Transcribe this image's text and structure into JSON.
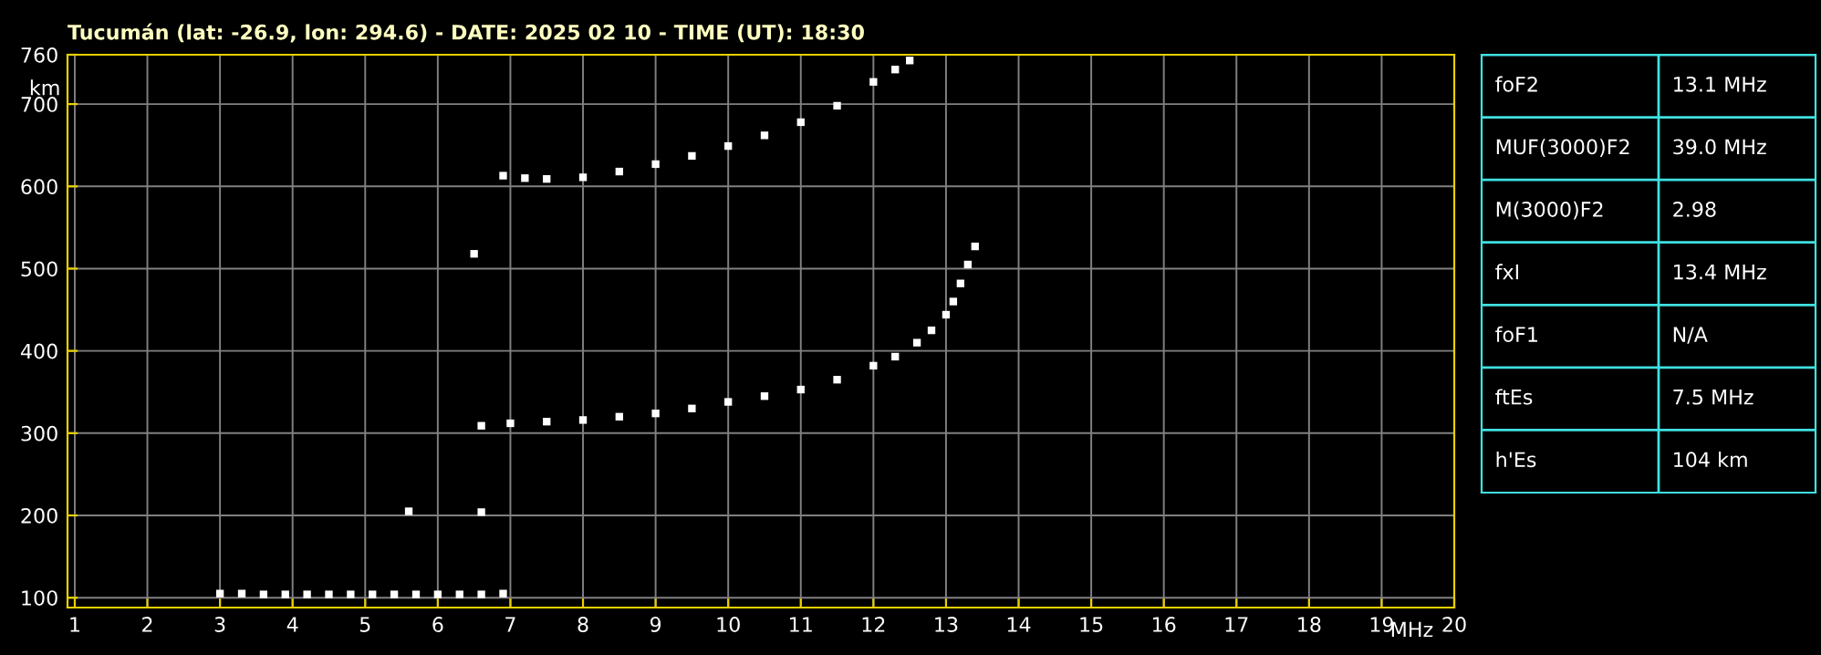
{
  "chart_data": [
    {
      "type": "scatter",
      "title": "Tucumán (lat: -26.9, lon: 294.6) - DATE: 2025 02 10 - TIME (UT): 18:30",
      "xlabel": "MHz",
      "ylabel": "km",
      "marker": "square",
      "grid": true,
      "xlim": [
        0.9,
        20
      ],
      "ylim": [
        88,
        760
      ],
      "xticks": [
        1,
        2,
        3,
        4,
        5,
        6,
        7,
        8,
        9,
        10,
        11,
        12,
        13,
        14,
        15,
        16,
        17,
        18,
        19,
        20
      ],
      "yticks": [
        100,
        200,
        300,
        400,
        500,
        600,
        700,
        760
      ],
      "series": [
        {
          "color": "#ffffff",
          "x": [
            3.0,
            3.3,
            3.6,
            3.9,
            4.2,
            4.5,
            4.8,
            5.1,
            5.4,
            5.7,
            6.0,
            6.3,
            6.6,
            6.9
          ],
          "values": [
            105,
            105,
            104,
            104,
            104,
            104,
            104,
            104,
            104,
            104,
            104,
            104,
            104,
            105
          ]
        },
        {
          "color": "#ffffff",
          "x": [
            6.6,
            7.0,
            7.5,
            8.0,
            8.5,
            9.0,
            9.5,
            10.0,
            10.5,
            11.0,
            11.5,
            12.0,
            12.3,
            12.6,
            12.8,
            13.0,
            13.1,
            13.2,
            13.3,
            13.4
          ],
          "values": [
            309,
            312,
            314,
            316,
            320,
            324,
            330,
            338,
            345,
            353,
            365,
            382,
            393,
            410,
            425,
            444,
            460,
            482,
            505,
            527
          ]
        },
        {
          "color": "#ffffff",
          "x": [
            6.9,
            7.2,
            7.5,
            8.0,
            8.5,
            9.0,
            9.5,
            10.0,
            10.5,
            11.0,
            11.5,
            12.0,
            12.3,
            12.5
          ],
          "values": [
            613,
            610,
            609,
            611,
            618,
            627,
            637,
            649,
            662,
            678,
            698,
            727,
            742,
            753
          ]
        },
        {
          "color": "#ffffff",
          "x": [
            5.6,
            6.6,
            6.5
          ],
          "values": [
            205,
            204,
            518
          ]
        }
      ]
    },
    {
      "type": "other",
      "annotations": [
        "foF2",
        "13.1 MHz",
        "MUF(3000)F2",
        "39.0 MHz",
        "M(3000)F2",
        "2.98",
        "fxI",
        "13.4 MHz",
        "foF1",
        "N/A",
        "ftEs",
        "7.5 MHz",
        "h'Es",
        "104 km"
      ]
    }
  ]
}
